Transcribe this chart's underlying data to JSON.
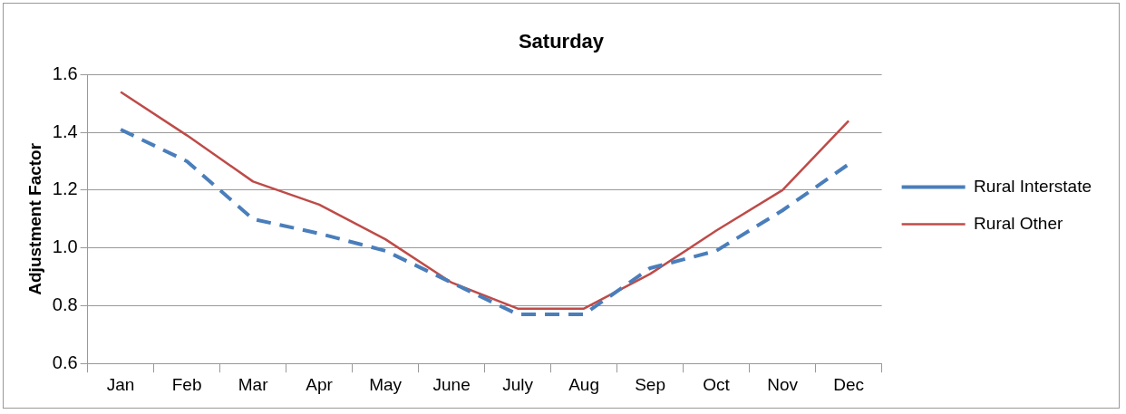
{
  "chart_data": {
    "type": "line",
    "title": "Saturday",
    "ylabel": "Adjustment Factor",
    "categories": [
      "Jan",
      "Feb",
      "Mar",
      "Apr",
      "May",
      "June",
      "July",
      "Aug",
      "Sep",
      "Oct",
      "Nov",
      "Dec"
    ],
    "series": [
      {
        "name": "Rural Interstate",
        "color": "#4a7ebb",
        "line_style": "dashed",
        "values": [
          1.41,
          1.3,
          1.1,
          1.05,
          0.99,
          0.88,
          0.77,
          0.77,
          0.93,
          0.99,
          1.13,
          1.29
        ]
      },
      {
        "name": "Rural Other",
        "color": "#be4b48",
        "line_style": "solid",
        "values": [
          1.54,
          1.39,
          1.23,
          1.15,
          1.03,
          0.88,
          0.79,
          0.79,
          0.91,
          1.06,
          1.2,
          1.44
        ]
      }
    ],
    "ylim": [
      0.6,
      1.6
    ],
    "yticks": [
      0.6,
      0.8,
      {
        "value": 1,
        "label": "1.0"
      },
      1.2,
      1.4,
      1.6
    ],
    "grid": "y",
    "legend": "right",
    "marker": "none"
  }
}
